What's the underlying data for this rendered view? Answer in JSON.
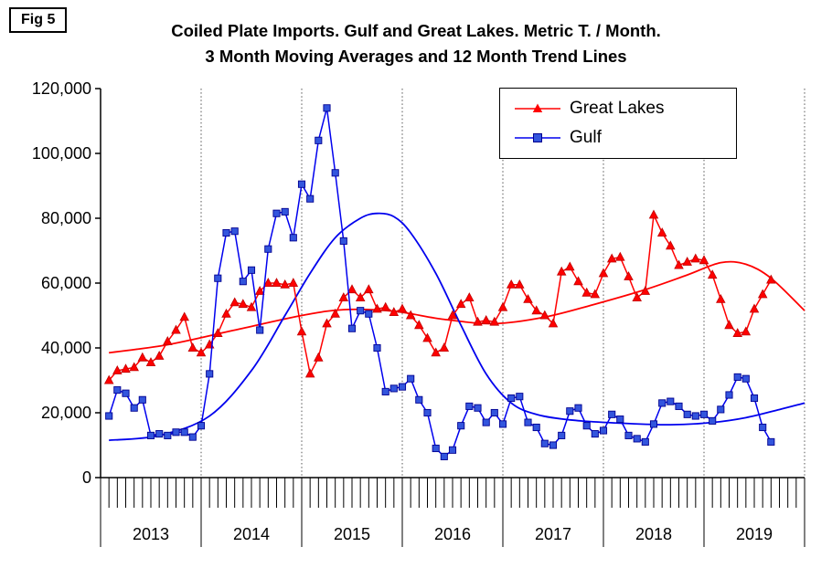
{
  "figure_label": "Fig 5",
  "title_line1": "Coiled Plate Imports. Gulf and Great Lakes. Metric T. / Month.",
  "title_line2": "3 Month Moving Averages and 12 Month Trend Lines",
  "legend": {
    "items": [
      {
        "label": "Great Lakes",
        "marker": "triangle",
        "color": "#FF0000",
        "edge": "#C00000"
      },
      {
        "label": "Gulf",
        "marker": "square",
        "color": "#0000EE",
        "marker_fill": "#3355DD",
        "edge": "#000090"
      }
    ]
  },
  "chart_data": {
    "type": "line",
    "title": "Coiled Plate Imports. Gulf and Great Lakes. Metric T. / Month.",
    "subtitle": "3 Month Moving Averages and 12 Month Trend Lines",
    "ylabel": "Metric T. / Month",
    "ylim": [
      0,
      120000
    ],
    "y_tick_step": 20000,
    "y_tick_labels": [
      "0",
      "20,000",
      "40,000",
      "60,000",
      "80,000",
      "100,000",
      "120,000"
    ],
    "x_years": [
      "2013",
      "2014",
      "2015",
      "2016",
      "2017",
      "2018",
      "2019"
    ],
    "months_total": 84,
    "start_month_offset": 1,
    "grid": "vertical-dotted-year-boundaries",
    "legend_position": "top-center",
    "series": [
      {
        "id": "great-lakes",
        "name": "Great Lakes",
        "marker": "triangle",
        "color": "#FF0000",
        "marker_edge": "#C00000",
        "values": [
          30000,
          33000,
          33500,
          34000,
          37000,
          35500,
          37500,
          42000,
          45500,
          49500,
          40000,
          38500,
          41000,
          44500,
          50500,
          54000,
          53500,
          52500,
          57500,
          60000,
          60000,
          59500,
          60000,
          45000,
          32000,
          37000,
          47500,
          50500,
          55500,
          58000,
          55500,
          58000,
          52000,
          52500,
          51000,
          52000,
          50000,
          47000,
          43000,
          38500,
          40000,
          50000,
          53500,
          55500,
          48000,
          48500,
          48000,
          52500,
          59500,
          59500,
          55000,
          51500,
          50000,
          47500,
          63500,
          65000,
          60500,
          57000,
          56500,
          63000,
          67500,
          68000,
          62000,
          55500,
          57500,
          81000,
          75500,
          71500,
          65500,
          66500,
          67500,
          67000,
          62500,
          55000,
          47000,
          44500,
          45000,
          52000,
          56500,
          61000
        ]
      },
      {
        "id": "gulf",
        "name": "Gulf",
        "marker": "square",
        "color": "#0000EE",
        "marker_fill": "#3355DD",
        "marker_edge": "#000090",
        "values": [
          19000,
          27000,
          26000,
          21500,
          24000,
          13000,
          13500,
          13000,
          14000,
          14000,
          12500,
          16000,
          32000,
          61500,
          75500,
          76000,
          60500,
          64000,
          45500,
          70500,
          81500,
          82000,
          74000,
          90500,
          86000,
          104000,
          114000,
          94000,
          73000,
          46000,
          51500,
          50500,
          40000,
          26500,
          27500,
          28000,
          30500,
          24000,
          20000,
          9000,
          6500,
          8500,
          16000,
          22000,
          21500,
          17000,
          20000,
          16500,
          24500,
          25000,
          17000,
          15500,
          10500,
          10000,
          13000,
          20500,
          21500,
          16000,
          13500,
          14500,
          19500,
          18000,
          13000,
          12000,
          11000,
          16500,
          23000,
          23500,
          22000,
          19500,
          19000,
          19500,
          17500,
          21000,
          25500,
          31000,
          30500,
          24500,
          15500,
          11000
        ]
      }
    ],
    "trend_lines": [
      {
        "id": "great-lakes-trend",
        "name": "Great Lakes 12 month trend",
        "color": "#FF0000",
        "points": [
          [
            1,
            38500
          ],
          [
            8,
            41000
          ],
          [
            16,
            45500
          ],
          [
            24,
            50000
          ],
          [
            29,
            51800
          ],
          [
            35,
            51300
          ],
          [
            41,
            48800
          ],
          [
            47,
            47500
          ],
          [
            53,
            49500
          ],
          [
            59,
            53500
          ],
          [
            65,
            58000
          ],
          [
            70,
            62500
          ],
          [
            74,
            66300
          ],
          [
            77,
            65800
          ],
          [
            80,
            61500
          ],
          [
            84,
            51500
          ]
        ]
      },
      {
        "id": "gulf-trend",
        "name": "Gulf 12 month trend",
        "color": "#0000EE",
        "points": [
          [
            1,
            11500
          ],
          [
            7,
            13000
          ],
          [
            13,
            19000
          ],
          [
            18,
            33000
          ],
          [
            22,
            50000
          ],
          [
            25,
            63000
          ],
          [
            28,
            74000
          ],
          [
            31,
            80000
          ],
          [
            33,
            81500
          ],
          [
            35,
            80500
          ],
          [
            37,
            75500
          ],
          [
            40,
            63000
          ],
          [
            43,
            47000
          ],
          [
            46,
            32000
          ],
          [
            49,
            23000
          ],
          [
            52,
            19500
          ],
          [
            56,
            17800
          ],
          [
            62,
            16800
          ],
          [
            68,
            16300
          ],
          [
            73,
            17000
          ],
          [
            77,
            18500
          ],
          [
            81,
            21000
          ],
          [
            84,
            23000
          ]
        ]
      }
    ]
  }
}
